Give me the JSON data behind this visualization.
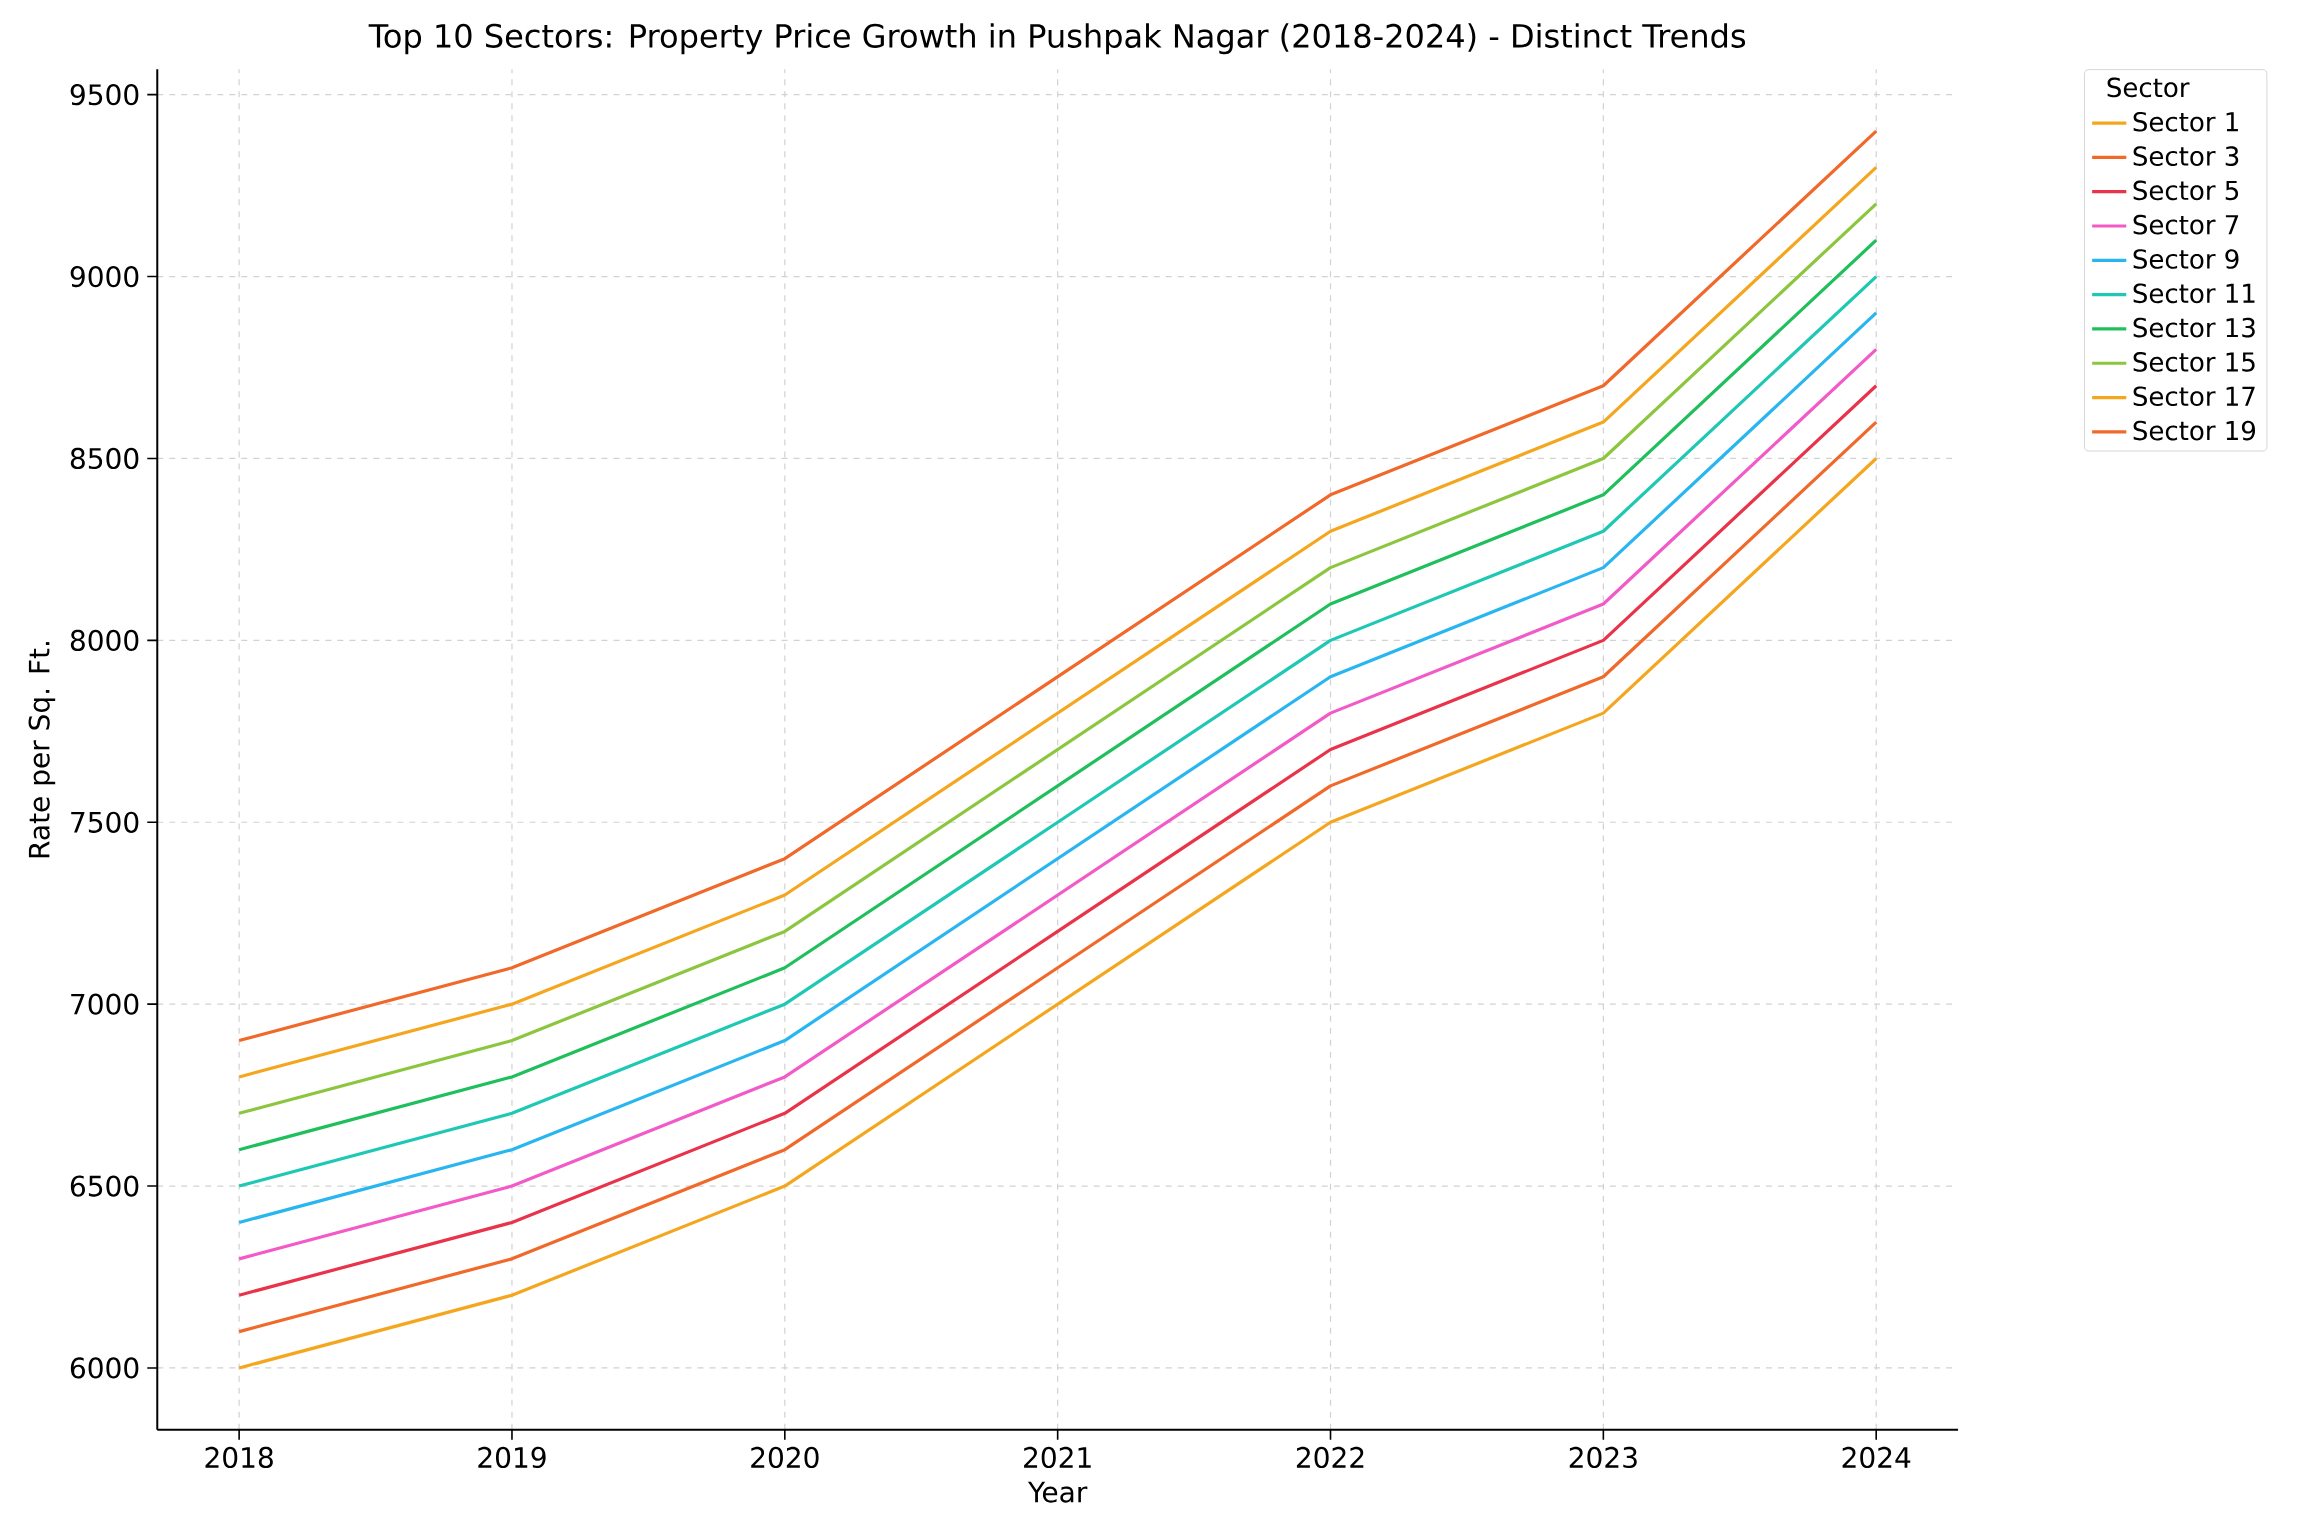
{
  "chart_data": {
    "type": "line",
    "title": "Top 10 Sectors: Property Price Growth in Pushpak Nagar (2018-2024) - Distinct Trends",
    "xlabel": "Year",
    "ylabel": "Rate per Sq. Ft.",
    "legend_title": "Sector",
    "x": [
      2018,
      2019,
      2020,
      2021,
      2022,
      2023,
      2024
    ],
    "series": [
      {
        "name": "Sector 1",
        "color": "#f5a61f",
        "values": [
          6000,
          6200,
          6500,
          7000,
          7500,
          7800,
          8500
        ]
      },
      {
        "name": "Sector 3",
        "color": "#f0692a",
        "values": [
          6100,
          6300,
          6600,
          7100,
          7600,
          7900,
          8600
        ]
      },
      {
        "name": "Sector 5",
        "color": "#e8334a",
        "values": [
          6200,
          6400,
          6700,
          7200,
          7700,
          8000,
          8700
        ]
      },
      {
        "name": "Sector 7",
        "color": "#f25ac8",
        "values": [
          6300,
          6500,
          6800,
          7300,
          7800,
          8100,
          8800
        ]
      },
      {
        "name": "Sector 9",
        "color": "#29b6f0",
        "values": [
          6400,
          6600,
          6900,
          7400,
          7900,
          8200,
          8900
        ]
      },
      {
        "name": "Sector 11",
        "color": "#1ec8b4",
        "values": [
          6500,
          6700,
          7000,
          7500,
          8000,
          8300,
          9000
        ]
      },
      {
        "name": "Sector 13",
        "color": "#1fbf5c",
        "values": [
          6600,
          6800,
          7100,
          7600,
          8100,
          8400,
          9100
        ]
      },
      {
        "name": "Sector 15",
        "color": "#8cc63f",
        "values": [
          6700,
          6900,
          7200,
          7700,
          8200,
          8500,
          9200
        ]
      },
      {
        "name": "Sector 17",
        "color": "#f5a61f",
        "values": [
          6800,
          7000,
          7300,
          7800,
          8300,
          8600,
          9300
        ]
      },
      {
        "name": "Sector 19",
        "color": "#f0692a",
        "values": [
          6900,
          7100,
          7400,
          7900,
          8400,
          8700,
          9400
        ]
      }
    ],
    "xlim": [
      2017.7,
      2024.3
    ],
    "ylim": [
      5830,
      9570
    ],
    "xticks": [
      2018,
      2019,
      2020,
      2021,
      2022,
      2023,
      2024
    ],
    "yticks": [
      6000,
      6500,
      7000,
      7500,
      8000,
      8500,
      9000,
      9500
    ],
    "grid": true,
    "legend": "top right",
    "marker": "none",
    "line_style": "solid"
  }
}
